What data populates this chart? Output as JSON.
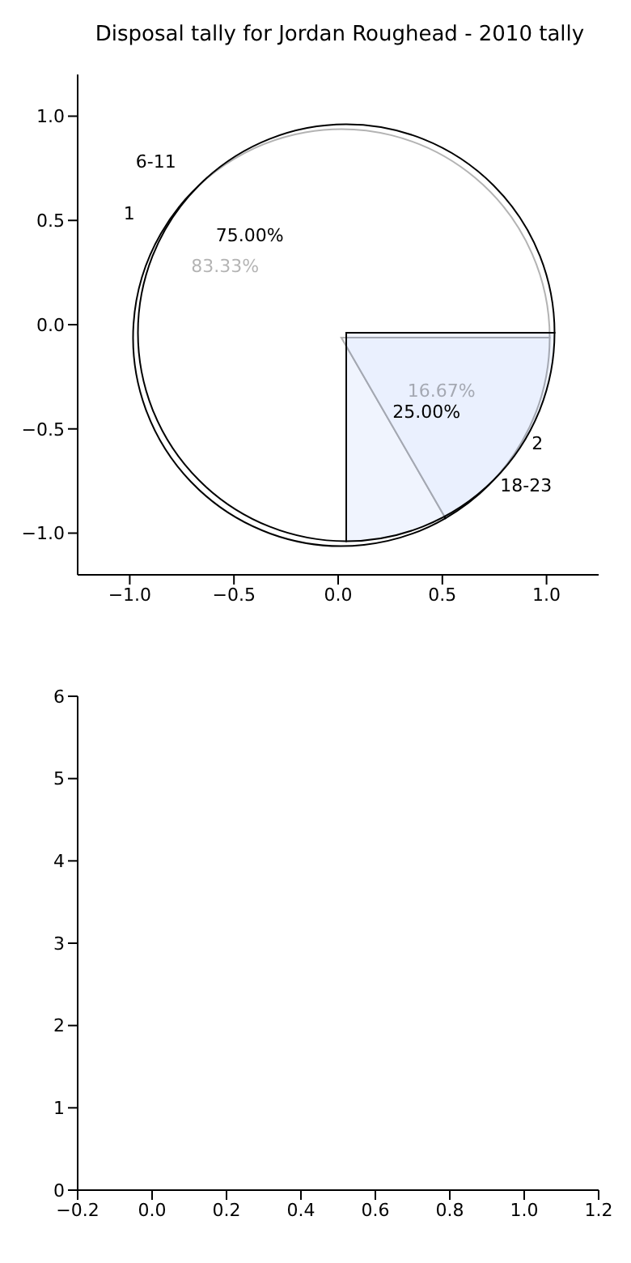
{
  "chart_data": [
    {
      "type": "pie",
      "title": "Disposal tally for Jordan Roughead - 2010 tally",
      "categories": [
        "6-11",
        "18-23"
      ],
      "values": [
        75,
        25
      ],
      "colors": [
        "#ffffff",
        "#eaf0fd"
      ],
      "value_labels": [
        "75.00%",
        "25.00%"
      ]
    },
    {
      "type": "pie",
      "categories": [
        "1",
        "2"
      ],
      "values": [
        83.33,
        16.67
      ],
      "colors": [
        "#ffffff",
        "#eaf0fd"
      ],
      "value_labels": [
        "83.33%",
        "16.67%"
      ]
    },
    {
      "type": "scatter",
      "xlim": [
        -1.25,
        1.25
      ],
      "ylim": [
        -1.2,
        1.2
      ],
      "xticks": [
        {
          "value": -1,
          "label": "−1.0"
        },
        {
          "value": -0.5,
          "label": "−0.5"
        },
        {
          "value": 0,
          "label": "0.0"
        },
        {
          "value": 0.5,
          "label": "0.5"
        },
        {
          "value": 1,
          "label": "1.0"
        }
      ],
      "yticks": [
        {
          "value": -1,
          "label": "−1.0"
        },
        {
          "value": -0.5,
          "label": "−0.5"
        },
        {
          "value": 0,
          "label": "0.0"
        },
        {
          "value": 0.5,
          "label": "0.5"
        },
        {
          "value": 1,
          "label": "1.0"
        }
      ]
    },
    {
      "type": "scatter",
      "xlim": [
        -0.2,
        1.2
      ],
      "ylim": [
        0,
        6
      ],
      "xticks": [
        {
          "value": -0.2,
          "label": "−0.2"
        },
        {
          "value": 0,
          "label": "0.0"
        },
        {
          "value": 0.2,
          "label": "0.2"
        },
        {
          "value": 0.4,
          "label": "0.4"
        },
        {
          "value": 0.6,
          "label": "0.6"
        },
        {
          "value": 0.8,
          "label": "0.8"
        },
        {
          "value": 1,
          "label": "1.0"
        },
        {
          "value": 1.2,
          "label": "1.2"
        }
      ],
      "yticks": [
        0,
        1,
        2,
        3,
        4,
        5,
        6
      ]
    }
  ]
}
